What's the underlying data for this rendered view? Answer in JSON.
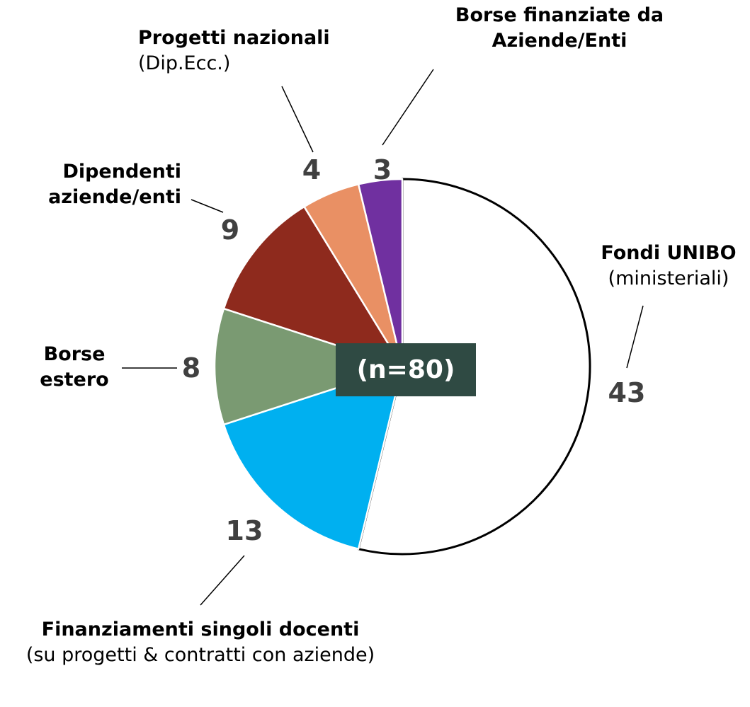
{
  "chart_data": {
    "type": "pie",
    "categories": [
      "Fondi UNIBO",
      "Finanziamenti singoli docenti",
      "Borse estero",
      "Dipendenti aziende/enti",
      "Progetti nazionali",
      "Borse finanziate da Aziende/Enti"
    ],
    "category_notes": [
      "(ministeriali)",
      "(su progetti & contratti con aziende)",
      null,
      null,
      "(Dip.Ecc.)",
      null
    ],
    "values": [
      43,
      13,
      8,
      9,
      4,
      3
    ],
    "colors": [
      "#ffffff",
      "#00b0f0",
      "#7a9a72",
      "#8e2a1d",
      "#e99064",
      "#7030a0"
    ],
    "annotation": "(n=80)"
  }
}
